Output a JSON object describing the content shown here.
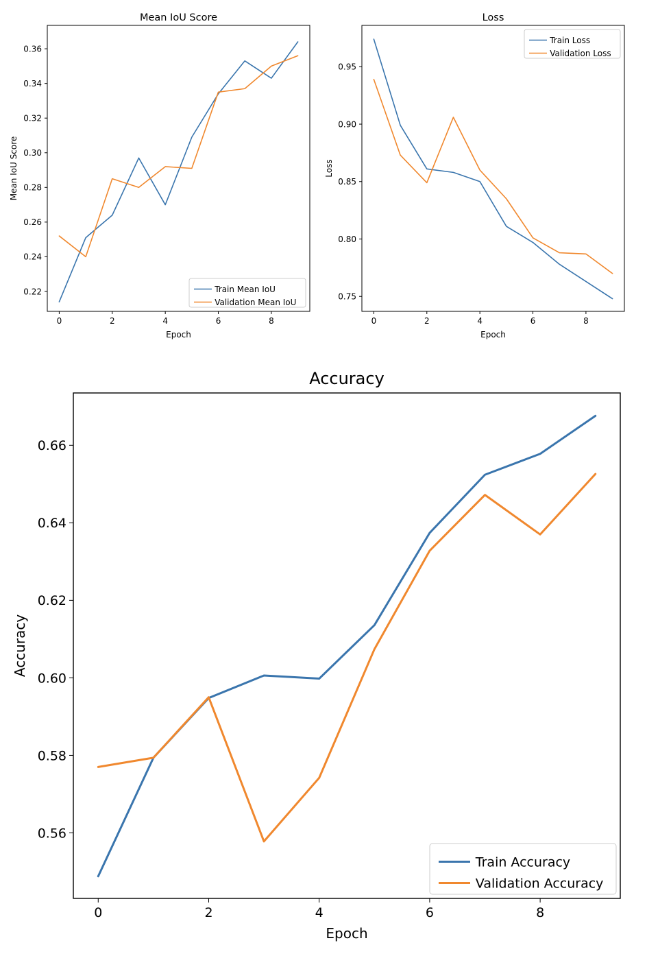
{
  "colors": {
    "train": "#3a75ad",
    "validation": "#f0882e"
  },
  "chart_data": [
    {
      "type": "line",
      "title": "Mean IoU Score",
      "xlabel": "Epoch",
      "ylabel": "Mean IoU Score",
      "x": [
        0,
        1,
        2,
        3,
        4,
        5,
        6,
        7,
        8,
        9
      ],
      "xlim": [
        -0.45,
        9.45
      ],
      "ylim": [
        0.2085,
        0.3735
      ],
      "xticks": [
        "0",
        "2",
        "4",
        "6",
        "8"
      ],
      "yticks": [
        "0.22",
        "0.24",
        "0.26",
        "0.28",
        "0.30",
        "0.32",
        "0.34",
        "0.36"
      ],
      "legend_position": "lower right",
      "grid": false,
      "series": [
        {
          "name": "Train Mean IoU",
          "values": [
            0.214,
            0.251,
            0.264,
            0.297,
            0.27,
            0.309,
            0.334,
            0.353,
            0.343,
            0.364
          ]
        },
        {
          "name": "Validation Mean IoU",
          "values": [
            0.252,
            0.24,
            0.285,
            0.28,
            0.292,
            0.291,
            0.335,
            0.337,
            0.35,
            0.356
          ]
        }
      ]
    },
    {
      "type": "line",
      "title": "Loss",
      "xlabel": "Epoch",
      "ylabel": "Loss",
      "x": [
        0,
        1,
        2,
        3,
        4,
        5,
        6,
        7,
        8,
        9
      ],
      "xlim": [
        -0.45,
        9.45
      ],
      "ylim": [
        0.737,
        0.986
      ],
      "xticks": [
        "0",
        "2",
        "4",
        "6",
        "8"
      ],
      "yticks": [
        "0.75",
        "0.80",
        "0.85",
        "0.90",
        "0.95"
      ],
      "legend_position": "upper right",
      "grid": false,
      "series": [
        {
          "name": "Train Loss",
          "values": [
            0.974,
            0.899,
            0.861,
            0.858,
            0.85,
            0.811,
            0.797,
            0.778,
            0.763,
            0.748
          ]
        },
        {
          "name": "Validation Loss",
          "values": [
            0.939,
            0.873,
            0.849,
            0.906,
            0.86,
            0.835,
            0.801,
            0.788,
            0.787,
            0.77
          ]
        }
      ]
    },
    {
      "type": "line",
      "title": "Accuracy",
      "xlabel": "Epoch",
      "ylabel": "Accuracy",
      "x": [
        0,
        1,
        2,
        3,
        4,
        5,
        6,
        7,
        8,
        9
      ],
      "xlim": [
        -0.45,
        9.45
      ],
      "ylim": [
        0.5431,
        0.6735
      ],
      "xticks": [
        "0",
        "2",
        "4",
        "6",
        "8"
      ],
      "yticks": [
        "0.56",
        "0.58",
        "0.60",
        "0.62",
        "0.64",
        "0.66"
      ],
      "legend_position": "lower right",
      "grid": false,
      "series": [
        {
          "name": "Train Accuracy",
          "values": [
            0.5488,
            0.5794,
            0.5948,
            0.6006,
            0.5998,
            0.6136,
            0.6374,
            0.6524,
            0.6578,
            0.6676
          ]
        },
        {
          "name": "Validation Accuracy",
          "values": [
            0.577,
            0.5794,
            0.595,
            0.5578,
            0.5742,
            0.6074,
            0.6328,
            0.6472,
            0.637,
            0.6526
          ]
        }
      ]
    }
  ]
}
